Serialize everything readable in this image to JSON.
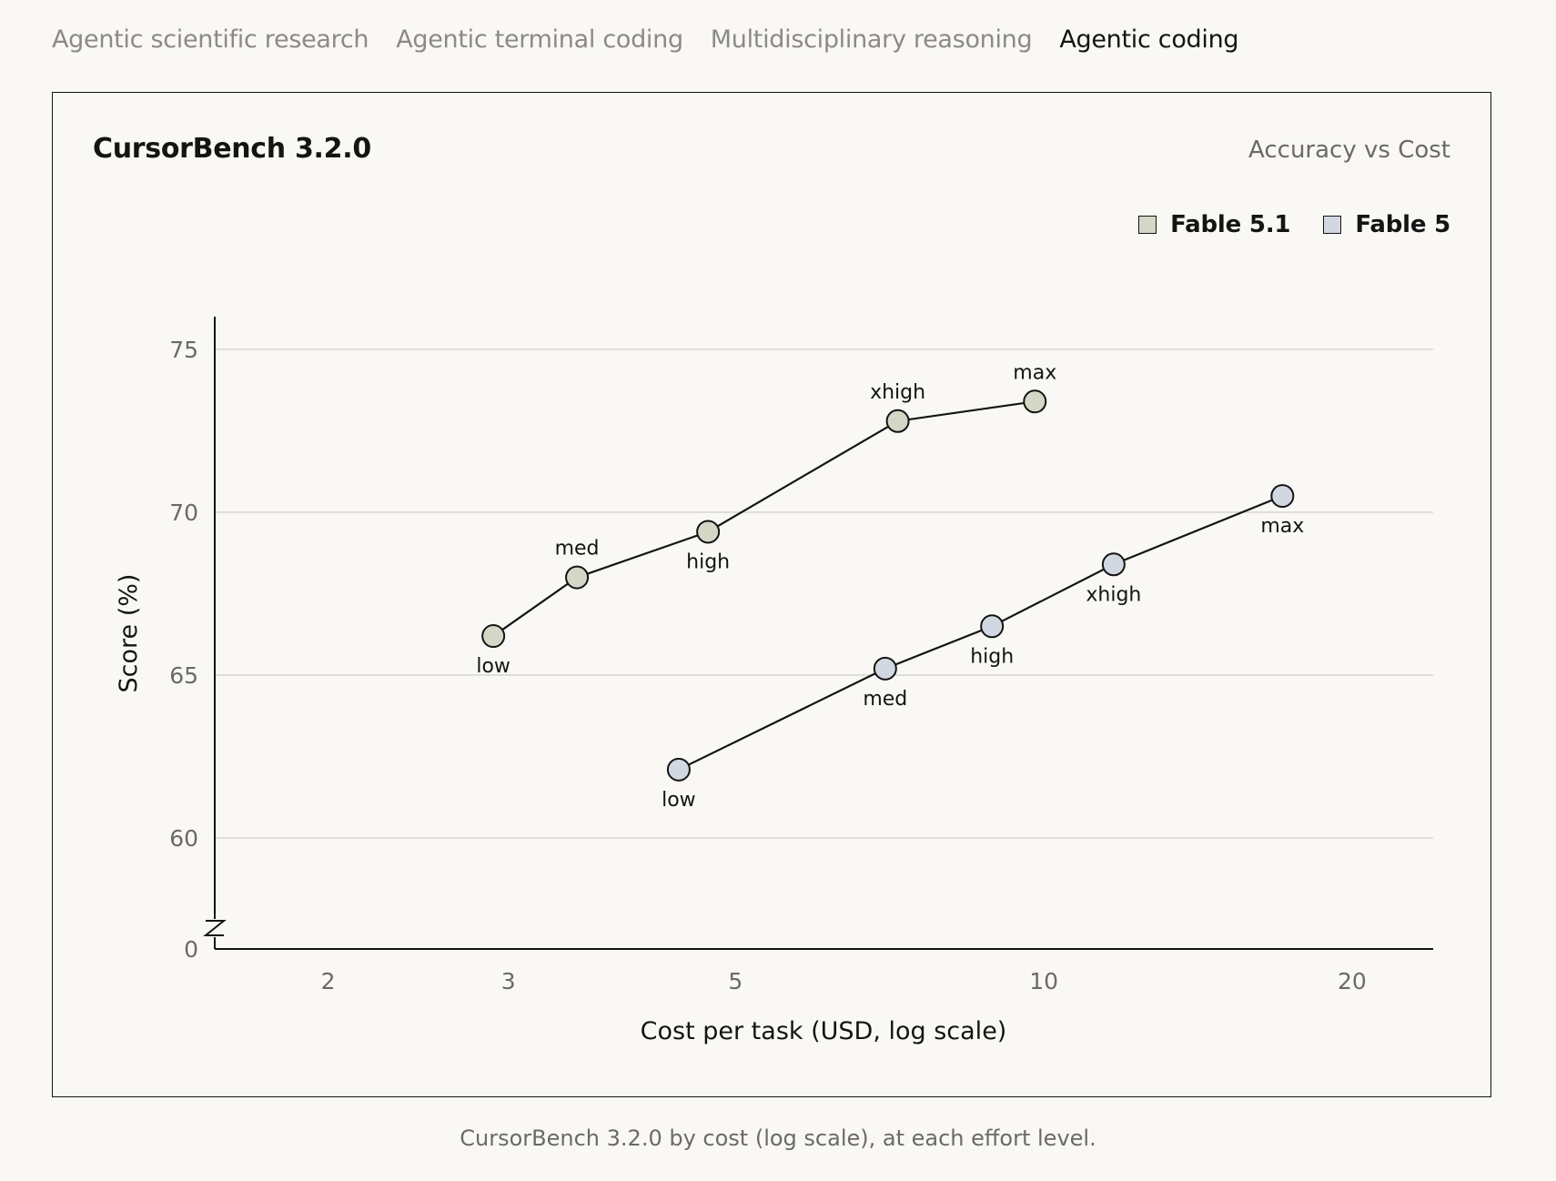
{
  "tabs": [
    {
      "label": "Agentic scientific research",
      "active": false
    },
    {
      "label": "Agentic terminal coding",
      "active": false
    },
    {
      "label": "Multidisciplinary reasoning",
      "active": false
    },
    {
      "label": "Agentic coding",
      "active": true
    }
  ],
  "card": {
    "title": "CursorBench 3.2.0",
    "subtitle": "Accuracy vs Cost"
  },
  "caption": "CursorBench 3.2.0 by cost (log scale), at each effort level.",
  "chart_data": {
    "type": "line",
    "title": "CursorBench 3.2.0",
    "subtitle": "Accuracy vs Cost",
    "xlabel": "Cost per task (USD, log scale)",
    "ylabel": "Score (%)",
    "x_scale": "log",
    "xlim": [
      1.55,
      24
    ],
    "x_ticks": [
      2,
      3,
      5,
      10,
      20
    ],
    "ylim": [
      60,
      76
    ],
    "y_ticks": [
      60,
      65,
      70,
      75
    ],
    "y_axis_break": true,
    "y_origin_label": "0",
    "grid": "horizontal",
    "legend_position": "top-right",
    "series": [
      {
        "name": "Fable 5.1",
        "color": "#d4d7c5",
        "points": [
          {
            "x": 2.9,
            "y": 66.2,
            "label": "low",
            "label_pos": "below"
          },
          {
            "x": 3.5,
            "y": 68.0,
            "label": "med",
            "label_pos": "above"
          },
          {
            "x": 4.7,
            "y": 69.4,
            "label": "high",
            "label_pos": "below"
          },
          {
            "x": 7.2,
            "y": 72.8,
            "label": "xhigh",
            "label_pos": "above"
          },
          {
            "x": 9.8,
            "y": 73.4,
            "label": "max",
            "label_pos": "above"
          }
        ]
      },
      {
        "name": "Fable 5",
        "color": "#d2d8e2",
        "points": [
          {
            "x": 4.4,
            "y": 62.1,
            "label": "low",
            "label_pos": "below"
          },
          {
            "x": 7.0,
            "y": 65.2,
            "label": "med",
            "label_pos": "below"
          },
          {
            "x": 8.9,
            "y": 66.5,
            "label": "high",
            "label_pos": "below"
          },
          {
            "x": 11.7,
            "y": 68.4,
            "label": "xhigh",
            "label_pos": "below"
          },
          {
            "x": 17.1,
            "y": 70.5,
            "label": "max",
            "label_pos": "below"
          }
        ]
      }
    ]
  }
}
